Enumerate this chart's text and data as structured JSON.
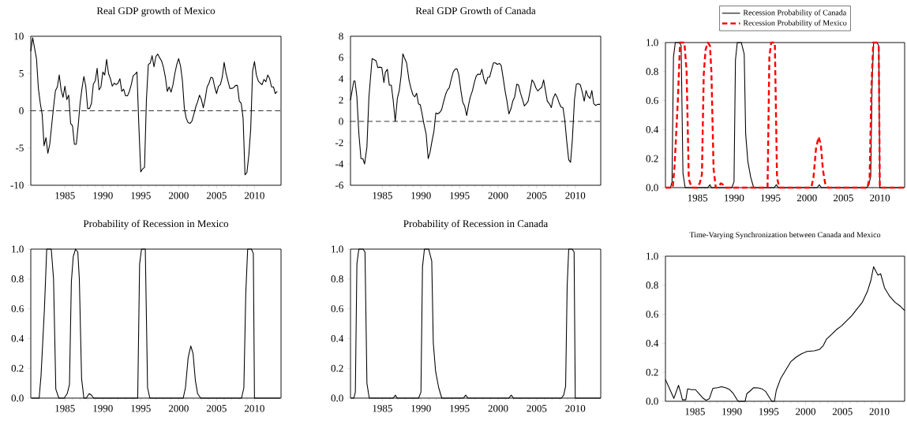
{
  "chart_data": [
    {
      "type": "line",
      "title": "Real GDP growth of Mexico",
      "color": "#000000",
      "x": [
        1980.5,
        1980.75,
        1981.25,
        1981.5,
        1981.75,
        1982,
        1982.25,
        1982.5,
        1982.75,
        1983,
        1983.25,
        1983.5,
        1983.75,
        1984,
        1984.25,
        1984.5,
        1984.75,
        1985,
        1985.25,
        1985.5,
        1985.75,
        1986,
        1986.25,
        1986.5,
        1986.75,
        1987,
        1987.25,
        1987.5,
        1987.75,
        1988,
        1988.25,
        1988.5,
        1988.75,
        1989,
        1989.25,
        1989.5,
        1989.75,
        1990,
        1990.25,
        1990.5,
        1990.75,
        1991,
        1991.25,
        1991.5,
        1991.75,
        1992,
        1992.25,
        1992.5,
        1992.75,
        1993,
        1993.25,
        1993.5,
        1993.75,
        1994,
        1994.25,
        1994.5,
        1994.75,
        1995,
        1995.25,
        1995.5,
        1995.75,
        1996,
        1996.25,
        1996.5,
        1996.75,
        1997,
        1997.25,
        1997.5,
        1997.75,
        1998,
        1998.25,
        1998.5,
        1998.75,
        1999,
        1999.25,
        1999.5,
        1999.75,
        2000,
        2000.25,
        2000.5,
        2000.75,
        2001,
        2001.25,
        2001.5,
        2001.75,
        2002,
        2002.25,
        2002.5,
        2002.75,
        2003,
        2003.25,
        2003.5,
        2003.75,
        2004,
        2004.25,
        2004.5,
        2004.75,
        2005,
        2005.25,
        2005.5,
        2005.75,
        2006,
        2006.25,
        2006.5,
        2006.75,
        2007,
        2007.25,
        2007.5,
        2007.75,
        2008,
        2008.25,
        2008.5,
        2008.75,
        2009,
        2009.25,
        2009.5,
        2009.75,
        2010,
        2010.25,
        2010.5,
        2010.75,
        2011,
        2011.25,
        2011.5,
        2011.75,
        2012,
        2012.25,
        2012.5,
        2012.75,
        2013
      ],
      "values": [
        8.0,
        9.8,
        7.0,
        3.0,
        1.0,
        -0.5,
        -4.7,
        -3.6,
        -5.7,
        -4.5,
        -2.0,
        0.5,
        2.7,
        3.2,
        4.8,
        2.8,
        1.8,
        3.3,
        1.5,
        2.1,
        -1.7,
        -2.0,
        -4.5,
        -4.5,
        -2.0,
        1.0,
        3.0,
        4.6,
        3.3,
        0.3,
        0.3,
        1.0,
        3.6,
        4.0,
        5.7,
        2.8,
        3.2,
        5.2,
        4.8,
        6.9,
        5.0,
        4.3,
        3.3,
        3.7,
        3.5,
        3.7,
        4.3,
        2.6,
        2.9,
        2.0,
        2.0,
        2.6,
        3.5,
        4.7,
        4.9,
        5.2,
        -2.0,
        -8.2,
        -7.8,
        -7.6,
        1.5,
        6.2,
        6.4,
        7.4,
        5.9,
        7.3,
        7.6,
        7.1,
        6.7,
        5.8,
        4.5,
        2.6,
        3.2,
        2.5,
        3.5,
        5.0,
        6.2,
        7.0,
        6.0,
        4.0,
        0.3,
        -1.0,
        -1.6,
        -1.7,
        -1.4,
        -0.5,
        0.5,
        1.2,
        2.1,
        1.5,
        0.4,
        1.6,
        3.2,
        3.7,
        4.5,
        4.4,
        3.2,
        2.3,
        3.3,
        3.5,
        4.5,
        6.5,
        5.0,
        4.0,
        3.0,
        3.0,
        3.1,
        3.4,
        3.4,
        1.3,
        1.0,
        -1.0,
        -8.6,
        -8.3,
        -6.0,
        -2.5,
        5.3,
        6.6,
        4.8,
        4.0,
        3.7,
        3.5,
        4.2,
        3.9,
        4.8,
        4.3,
        3.2,
        3.2,
        2.3,
        2.6
      ],
      "xlim": [
        1980.5,
        2013.5
      ],
      "xticks": [
        1985,
        1990,
        1995,
        2000,
        2005,
        2010
      ],
      "ylim": [
        -10,
        10
      ],
      "yticks": [
        -10,
        -5,
        0,
        5,
        10
      ],
      "ref_lines": [
        {
          "axis": "y",
          "value": 0,
          "line_style": "dashed",
          "color": "#000000"
        }
      ]
    },
    {
      "type": "line",
      "title": "Real GDP Growth of Canada",
      "color": "#000000",
      "x": [
        1980.87,
        1981.3,
        1981.45,
        1981.7,
        1981.96,
        1982.23,
        1982.47,
        1982.7,
        1983.0,
        1983.26,
        1983.67,
        1983.94,
        1984.18,
        1984.42,
        1984.66,
        1984.93,
        1985.2,
        1985.38,
        1985.65,
        1985.9,
        1986.16,
        1986.4,
        1986.67,
        1986.95,
        1987.19,
        1987.42,
        1987.66,
        1987.9,
        1988.14,
        1988.45,
        1988.69,
        1988.96,
        1989.2,
        1989.44,
        1989.68,
        1989.92,
        1990.19,
        1990.43,
        1990.67,
        1990.94,
        1991.18,
        1991.42,
        1991.69,
        1991.93,
        1992.17,
        1992.45,
        1992.68,
        1992.92,
        1993.2,
        1993.44,
        1993.67,
        1993.91,
        1994.19,
        1994.43,
        1994.67,
        1994.9,
        1995.18,
        1995.42,
        1995.66,
        1995.93,
        1996.17,
        1996.4,
        1996.68,
        1996.92,
        1997.16,
        1997.4,
        1997.67,
        1997.9,
        1998.15,
        1998.42,
        1998.66,
        1998.9,
        1999.17,
        1999.4,
        1999.65,
        1999.9,
        2000.16,
        2000.4,
        2000.64,
        2000.9,
        2001.15,
        2001.4,
        2001.67,
        2001.9,
        2002.15,
        2002.42,
        2002.66,
        2002.9,
        2003.17,
        2003.4,
        2003.65,
        2003.89,
        2004.16,
        2004.4,
        2004.64,
        2004.9,
        2005.15,
        2005.39,
        2005.66,
        2005.9,
        2006.14,
        2006.38,
        2006.65,
        2006.9,
        2007.13,
        2007.4,
        2007.64,
        2007.88,
        2008.15,
        2008.4,
        2008.63,
        2008.9,
        2009.15,
        2009.39,
        2009.62,
        2009.9,
        2010.14,
        2010.38,
        2010.65,
        2010.89,
        2011.16,
        2011.4,
        2011.64,
        2011.91,
        2012.15,
        2012.4,
        2012.66,
        2012.9,
        2013.2
      ],
      "values": [
        2.0,
        3.8,
        3.8,
        2.3,
        -1.2,
        -3.5,
        -3.5,
        -4.0,
        -2.4,
        2.3,
        5.9,
        5.8,
        5.7,
        5.05,
        5.1,
        5.05,
        3.65,
        4.6,
        4.9,
        3.4,
        3.4,
        2.0,
        0.0,
        2.2,
        2.9,
        4.25,
        6.35,
        5.9,
        5.5,
        3.9,
        3.15,
        2.5,
        2.3,
        2.65,
        1.65,
        1.55,
        0.55,
        -0.4,
        -1.15,
        -3.5,
        -2.9,
        -1.9,
        -0.9,
        0.8,
        0.7,
        0.85,
        1.1,
        1.8,
        2.55,
        2.95,
        3.15,
        3.9,
        4.65,
        4.9,
        4.95,
        4.4,
        2.9,
        1.8,
        1.45,
        0.55,
        1.55,
        2.3,
        2.9,
        3.65,
        4.25,
        4.45,
        4.4,
        4.9,
        4.0,
        3.5,
        4.15,
        4.15,
        4.9,
        5.5,
        5.5,
        5.35,
        5.45,
        5.25,
        4.15,
        2.9,
        1.9,
        0.7,
        1.2,
        1.9,
        2.3,
        3.5,
        3.4,
        2.65,
        2.05,
        1.45,
        1.65,
        1.9,
        2.9,
        3.9,
        3.65,
        3.15,
        2.85,
        3.05,
        3.2,
        3.9,
        2.9,
        1.9,
        1.65,
        1.3,
        2.15,
        2.6,
        2.3,
        1.8,
        1.35,
        1.3,
        0.2,
        -1.9,
        -3.6,
        -3.85,
        -1.75,
        2.05,
        3.5,
        3.55,
        3.45,
        2.8,
        1.9,
        2.9,
        2.4,
        2.15,
        2.9,
        1.65,
        1.5,
        1.6,
        1.6
      ],
      "xlim": [
        1980.87,
        2013.3
      ],
      "xticks": [
        1985,
        1990,
        1995,
        2000,
        2005,
        2010
      ],
      "ylim": [
        -6,
        8
      ],
      "yticks": [
        -6,
        -4,
        -2,
        0,
        2,
        4,
        6,
        8
      ],
      "ref_lines": [
        {
          "axis": "y",
          "value": 0,
          "line_style": "dashed",
          "color": "#000000"
        }
      ]
    },
    {
      "type": "line",
      "legend": "top",
      "series": [
        {
          "name": "Recession Probability of Canada",
          "color": "#000000",
          "line_style": "solid",
          "x": [
            1980.9,
            1981.3,
            1981.5,
            1981.7,
            1981.95,
            1982.5,
            1982.75,
            1983.0,
            1983.3,
            1986.4,
            1986.7,
            1986.9,
            1989.7,
            1990.0,
            1990.2,
            1990.45,
            1991.0,
            1991.4,
            1991.6,
            1991.9,
            1992.3,
            1992.7,
            1995.5,
            1995.8,
            1996.1,
            2001.4,
            2001.7,
            2002.0,
            2008.2,
            2008.5,
            2008.75,
            2008.95,
            2009.15,
            2009.6,
            2009.85,
            2010.0,
            2013.3
          ],
          "values": [
            0,
            0,
            0.04,
            0.9,
            1.0,
            1.0,
            0.98,
            0.1,
            0,
            0,
            0.02,
            0,
            0,
            0.04,
            0.88,
            1.0,
            1.0,
            0.92,
            0.37,
            0.18,
            0.07,
            0,
            0,
            0.02,
            0,
            0,
            0.02,
            0,
            0,
            0.02,
            0.08,
            0.75,
            1.0,
            1.0,
            0.98,
            0,
            0
          ]
        },
        {
          "name": "Recession Probability of Mexico",
          "color": "#ff0000",
          "line_style": "dashed",
          "x": [
            1980.6,
            1981.6,
            1981.85,
            1982.3,
            1982.6,
            1983.2,
            1983.5,
            1983.8,
            1984.2,
            1984.9,
            1985.3,
            1985.6,
            1985.85,
            1986.1,
            1986.4,
            1986.7,
            1986.9,
            1987.2,
            1987.5,
            1987.8,
            1988.2,
            1988.5,
            1988.8,
            1994.6,
            1994.85,
            1995.1,
            1995.6,
            1995.9,
            1996.2,
            2000.6,
            2000.9,
            2001.25,
            2001.6,
            2001.9,
            2002.2,
            2002.5,
            2002.9,
            2008.3,
            2008.6,
            2008.85,
            2009.1,
            2009.6,
            2009.85,
            2010.0,
            2013.4
          ],
          "values": [
            0,
            0,
            0.15,
            0.6,
            1.0,
            1.0,
            0.8,
            0.06,
            0,
            0,
            0.03,
            0.09,
            0.78,
            0.95,
            1.0,
            0.98,
            0.8,
            0.13,
            0,
            0,
            0.03,
            0.02,
            0,
            0,
            0.9,
            1.0,
            1.0,
            0.07,
            0,
            0,
            0.07,
            0.27,
            0.35,
            0.3,
            0.12,
            0.03,
            0,
            0,
            0.07,
            0.7,
            1.0,
            1.0,
            0.97,
            0,
            0
          ]
        }
      ],
      "xlim": [
        1980.6,
        2013.4
      ],
      "xticks": [
        1985,
        1990,
        1995,
        2000,
        2005,
        2010
      ],
      "ylim": [
        0,
        1
      ],
      "yticks": [
        {
          "value": 0,
          "label": "0.0"
        },
        {
          "value": 0.2,
          "label": "0.2"
        },
        {
          "value": 0.4,
          "label": "0.4"
        },
        {
          "value": 0.6,
          "label": "0.6"
        },
        {
          "value": 0.8,
          "label": "0.8"
        },
        {
          "value": 1,
          "label": "1.0"
        }
      ]
    },
    {
      "type": "line",
      "title": "Probability of Recession in Mexico",
      "color": "#000000",
      "x": [
        1980.6,
        1981.6,
        1981.85,
        1982.3,
        1982.6,
        1983.2,
        1983.5,
        1983.8,
        1984.2,
        1984.9,
        1985.3,
        1985.6,
        1985.85,
        1986.1,
        1986.4,
        1986.7,
        1986.9,
        1987.2,
        1987.5,
        1987.8,
        1988.2,
        1988.5,
        1988.8,
        1994.6,
        1994.85,
        1995.1,
        1995.6,
        1995.9,
        1996.2,
        2000.6,
        2000.9,
        2001.25,
        2001.6,
        2001.9,
        2002.2,
        2002.5,
        2002.9,
        2008.3,
        2008.6,
        2008.85,
        2009.1,
        2009.6,
        2009.85,
        2010.0,
        2013.4
      ],
      "values": [
        0,
        0,
        0.15,
        0.6,
        1.0,
        1.0,
        0.8,
        0.06,
        0,
        0,
        0.03,
        0.09,
        0.78,
        0.95,
        1.0,
        0.98,
        0.8,
        0.13,
        0,
        0,
        0.03,
        0.02,
        0,
        0,
        0.9,
        1.0,
        1.0,
        0.07,
        0,
        0,
        0.07,
        0.27,
        0.35,
        0.3,
        0.12,
        0.03,
        0,
        0,
        0.07,
        0.7,
        1.0,
        1.0,
        0.97,
        0,
        0
      ],
      "xlim": [
        1980.5,
        2013.5
      ],
      "xticks": [
        1985,
        1990,
        1995,
        2000,
        2005,
        2010
      ],
      "ylim": [
        0,
        1
      ],
      "yticks": [
        {
          "value": 0,
          "label": "0.0"
        },
        {
          "value": 0.2,
          "label": "0.2"
        },
        {
          "value": 0.4,
          "label": "0.4"
        },
        {
          "value": 0.6,
          "label": "0.6"
        },
        {
          "value": 0.8,
          "label": "0.8"
        },
        {
          "value": 1,
          "label": "1.0"
        }
      ]
    },
    {
      "type": "line",
      "title": "Probability of Recession in Canada",
      "color": "#000000",
      "x": [
        1980.9,
        1981.3,
        1981.5,
        1981.7,
        1981.95,
        1982.5,
        1982.75,
        1983.0,
        1983.3,
        1986.4,
        1986.7,
        1986.9,
        1989.7,
        1990.0,
        1990.2,
        1990.45,
        1991.0,
        1991.4,
        1991.6,
        1991.9,
        1992.3,
        1992.7,
        1995.5,
        1995.8,
        1996.1,
        2001.4,
        2001.7,
        2002.0,
        2008.2,
        2008.5,
        2008.75,
        2008.95,
        2009.15,
        2009.6,
        2009.85,
        2010.0,
        2013.3
      ],
      "values": [
        0,
        0,
        0.04,
        0.9,
        1.0,
        1.0,
        0.98,
        0.1,
        0,
        0,
        0.02,
        0,
        0,
        0.04,
        0.88,
        1.0,
        1.0,
        0.92,
        0.37,
        0.18,
        0.07,
        0,
        0,
        0.02,
        0,
        0,
        0.02,
        0,
        0,
        0.02,
        0.08,
        0.75,
        1.0,
        1.0,
        0.98,
        0,
        0
      ],
      "xlim": [
        1980.87,
        2013.3
      ],
      "xticks": [
        1985,
        1990,
        1995,
        2000,
        2005,
        2010
      ],
      "ylim": [
        0,
        1
      ],
      "yticks": [
        {
          "value": 0,
          "label": "0.0"
        },
        {
          "value": 0.2,
          "label": "0.2"
        },
        {
          "value": 0.4,
          "label": "0.4"
        },
        {
          "value": 0.6,
          "label": "0.6"
        },
        {
          "value": 0.8,
          "label": "0.8"
        },
        {
          "value": 1,
          "label": "1.0"
        }
      ]
    },
    {
      "type": "line",
      "title": "Time-Varying Synchronization between Canada and Mexico",
      "color": "#000000",
      "x": [
        1981.0,
        1981.53,
        1982.14,
        1982.77,
        1983.06,
        1983.3,
        1983.55,
        1983.76,
        1984.0,
        1984.54,
        1985.07,
        1985.6,
        1986.13,
        1986.5,
        1986.95,
        1987.44,
        1988.08,
        1988.6,
        1989.14,
        1989.67,
        1990.2,
        1990.73,
        1990.9,
        1991.8,
        1992.04,
        1992.5,
        1992.96,
        1993.56,
        1994.1,
        1994.6,
        1995.15,
        1995.43,
        1995.78,
        1996.03,
        1996.63,
        1997.27,
        1997.98,
        1998.68,
        1999.4,
        2000.2,
        2001.16,
        2001.87,
        2002.4,
        2002.86,
        2003.56,
        2004.16,
        2004.87,
        2005.58,
        2006.29,
        2006.99,
        2007.7,
        2008.4,
        2008.87,
        2009.22,
        2009.58,
        2009.82,
        2010.18,
        2010.7,
        2011.41,
        2012.12,
        2012.83,
        2013.43
      ],
      "values": [
        0.15,
        0.09,
        0.02,
        0.11,
        0.06,
        0.01,
        0.01,
        0.01,
        0.085,
        0.08,
        0.08,
        0.05,
        0.02,
        0.007,
        0.018,
        0.09,
        0.094,
        0.1,
        0.094,
        0.082,
        0.053,
        0.009,
        0,
        0,
        0.053,
        0.072,
        0.094,
        0.092,
        0.085,
        0.067,
        0.022,
        0,
        0,
        0.076,
        0.158,
        0.212,
        0.272,
        0.303,
        0.326,
        0.344,
        0.348,
        0.357,
        0.384,
        0.43,
        0.462,
        0.493,
        0.52,
        0.556,
        0.592,
        0.638,
        0.683,
        0.759,
        0.837,
        0.928,
        0.891,
        0.87,
        0.879,
        0.783,
        0.723,
        0.683,
        0.656,
        0.625
      ],
      "xlim": [
        1981.0,
        2013.43
      ],
      "xticks": [
        1985,
        1990,
        1995,
        2000,
        2005,
        2010
      ],
      "ylim": [
        0,
        1
      ],
      "yticks": [
        {
          "value": 0,
          "label": "0.0"
        },
        {
          "value": 0.2,
          "label": "0.2"
        },
        {
          "value": 0.4,
          "label": "0.4"
        },
        {
          "value": 0.6,
          "label": "0.6"
        },
        {
          "value": 0.8,
          "label": "0.8"
        },
        {
          "value": 1,
          "label": "1.0"
        }
      ]
    }
  ]
}
